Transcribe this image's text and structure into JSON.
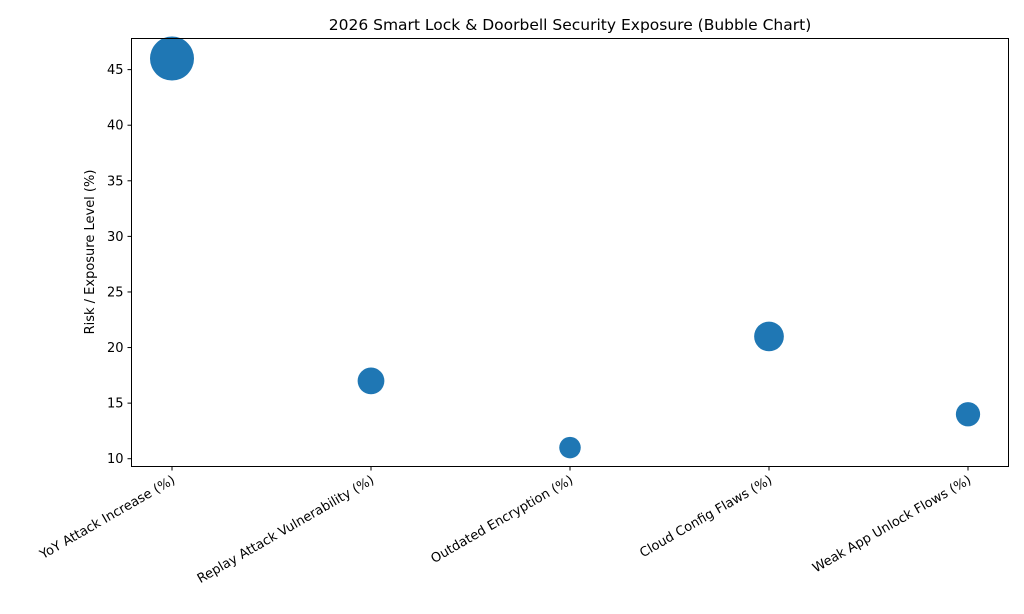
{
  "chart_data": {
    "type": "scatter",
    "subtype": "bubble",
    "title": "2026 Smart Lock & Doorbell Security Exposure (Bubble Chart)",
    "xlabel": "",
    "ylabel": "Risk / Exposure Level (%)",
    "categories": [
      "YoY Attack Increase (%)",
      "Replay Attack Vulnerability (%)",
      "Outdated Encryption (%)",
      "Cloud Config Flaws (%)",
      "Weak App Unlock Flows (%)"
    ],
    "values": [
      46,
      17,
      11,
      21,
      14
    ],
    "bubble_sizes": [
      46,
      17,
      11,
      21,
      14
    ],
    "ylim": [
      9.3,
      47.8
    ],
    "yticks": [
      10,
      15,
      20,
      25,
      30,
      35,
      40,
      45
    ],
    "grid": false,
    "legend": null,
    "color": "#1f77b4"
  }
}
